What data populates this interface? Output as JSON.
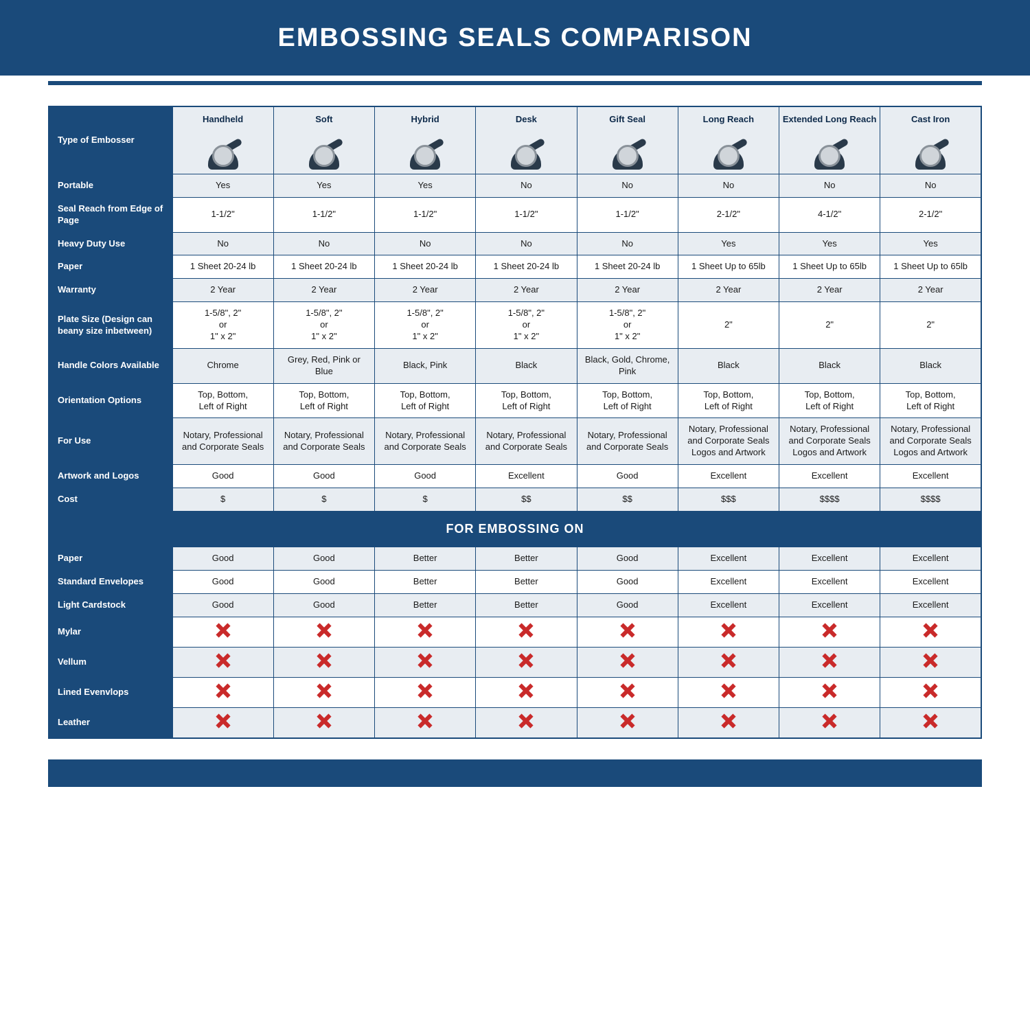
{
  "title": "EMBOSSING SEALS COMPARISON",
  "section_header": "FOR EMBOSSING ON",
  "type_label": "Type of Embosser",
  "colors": {
    "brand": "#1a4a7a",
    "alt_row": "#e8edf2",
    "text": "#1a1a1a",
    "x": "#c92a2a",
    "white": "#ffffff"
  },
  "table": {
    "type": "comparison-table",
    "columns": [
      "Handheld",
      "Soft",
      "Hybrid",
      "Desk",
      "Gift Seal",
      "Long Reach",
      "Extended Long Reach",
      "Cast Iron"
    ],
    "rows": [
      {
        "label": "Portable",
        "alt": true,
        "cells": [
          "Yes",
          "Yes",
          "Yes",
          "No",
          "No",
          "No",
          "No",
          "No"
        ]
      },
      {
        "label": "Seal Reach from Edge of Page",
        "alt": false,
        "cells": [
          "1-1/2\"",
          "1-1/2\"",
          "1-1/2\"",
          "1-1/2\"",
          "1-1/2\"",
          "2-1/2\"",
          "4-1/2\"",
          "2-1/2\""
        ]
      },
      {
        "label": "Heavy Duty Use",
        "alt": true,
        "cells": [
          "No",
          "No",
          "No",
          "No",
          "No",
          "Yes",
          "Yes",
          "Yes"
        ]
      },
      {
        "label": "Paper",
        "alt": false,
        "cells": [
          "1 Sheet 20-24 lb",
          "1 Sheet 20-24 lb",
          "1 Sheet 20-24 lb",
          "1 Sheet 20-24 lb",
          "1 Sheet 20-24 lb",
          "1 Sheet Up to 65lb",
          "1 Sheet Up to 65lb",
          "1 Sheet Up to 65lb"
        ]
      },
      {
        "label": "Warranty",
        "alt": true,
        "cells": [
          "2 Year",
          "2 Year",
          "2 Year",
          "2 Year",
          "2 Year",
          "2 Year",
          "2 Year",
          "2 Year"
        ]
      },
      {
        "label": "Plate Size (Design can beany size inbetween)",
        "alt": false,
        "cells": [
          "1-5/8\", 2\"\nor\n1\" x 2\"",
          "1-5/8\", 2\"\nor\n1\" x 2\"",
          "1-5/8\", 2\"\nor\n1\" x 2\"",
          "1-5/8\", 2\"\nor\n1\" x 2\"",
          "1-5/8\", 2\"\nor\n1\" x 2\"",
          "2\"",
          "2\"",
          "2\""
        ]
      },
      {
        "label": "Handle Colors Available",
        "alt": true,
        "cells": [
          "Chrome",
          "Grey, Red, Pink or Blue",
          "Black, Pink",
          "Black",
          "Black, Gold, Chrome, Pink",
          "Black",
          "Black",
          "Black"
        ]
      },
      {
        "label": "Orientation Options",
        "alt": false,
        "cells": [
          "Top, Bottom,\nLeft of Right",
          "Top, Bottom,\nLeft of Right",
          "Top, Bottom,\nLeft of Right",
          "Top, Bottom,\nLeft of Right",
          "Top, Bottom,\nLeft of Right",
          "Top, Bottom,\nLeft of Right",
          "Top, Bottom,\nLeft of Right",
          "Top, Bottom,\nLeft of Right"
        ]
      },
      {
        "label": "For Use",
        "alt": true,
        "cells": [
          "Notary, Professional and Corporate Seals",
          "Notary, Professional and Corporate Seals",
          "Notary, Professional and Corporate Seals",
          "Notary, Professional and Corporate Seals",
          "Notary, Professional and Corporate Seals",
          "Notary, Professional and Corporate Seals Logos and Artwork",
          "Notary, Professional and Corporate Seals Logos and Artwork",
          "Notary, Professional and Corporate Seals Logos and Artwork"
        ]
      },
      {
        "label": "Artwork and Logos",
        "alt": false,
        "cells": [
          "Good",
          "Good",
          "Good",
          "Excellent",
          "Good",
          "Excellent",
          "Excellent",
          "Excellent"
        ]
      },
      {
        "label": "Cost",
        "alt": true,
        "cells": [
          "$",
          "$",
          "$",
          "$$",
          "$$",
          "$$$",
          "$$$$",
          "$$$$"
        ]
      }
    ],
    "embossing_rows": [
      {
        "label": "Paper",
        "alt": true,
        "cells": [
          "Good",
          "Good",
          "Better",
          "Better",
          "Good",
          "Excellent",
          "Excellent",
          "Excellent"
        ]
      },
      {
        "label": "Standard Envelopes",
        "alt": false,
        "cells": [
          "Good",
          "Good",
          "Better",
          "Better",
          "Good",
          "Excellent",
          "Excellent",
          "Excellent"
        ]
      },
      {
        "label": "Light Cardstock",
        "alt": true,
        "cells": [
          "Good",
          "Good",
          "Better",
          "Better",
          "Good",
          "Excellent",
          "Excellent",
          "Excellent"
        ]
      },
      {
        "label": "Mylar",
        "alt": false,
        "cells": [
          "X",
          "X",
          "X",
          "X",
          "X",
          "X",
          "X",
          "X"
        ]
      },
      {
        "label": "Vellum",
        "alt": true,
        "cells": [
          "X",
          "X",
          "X",
          "X",
          "X",
          "X",
          "X",
          "X"
        ]
      },
      {
        "label": "Lined Evenvlops",
        "alt": false,
        "cells": [
          "X",
          "X",
          "X",
          "X",
          "X",
          "X",
          "X",
          "X"
        ]
      },
      {
        "label": "Leather",
        "alt": true,
        "cells": [
          "X",
          "X",
          "X",
          "X",
          "X",
          "X",
          "X",
          "X"
        ]
      }
    ]
  }
}
